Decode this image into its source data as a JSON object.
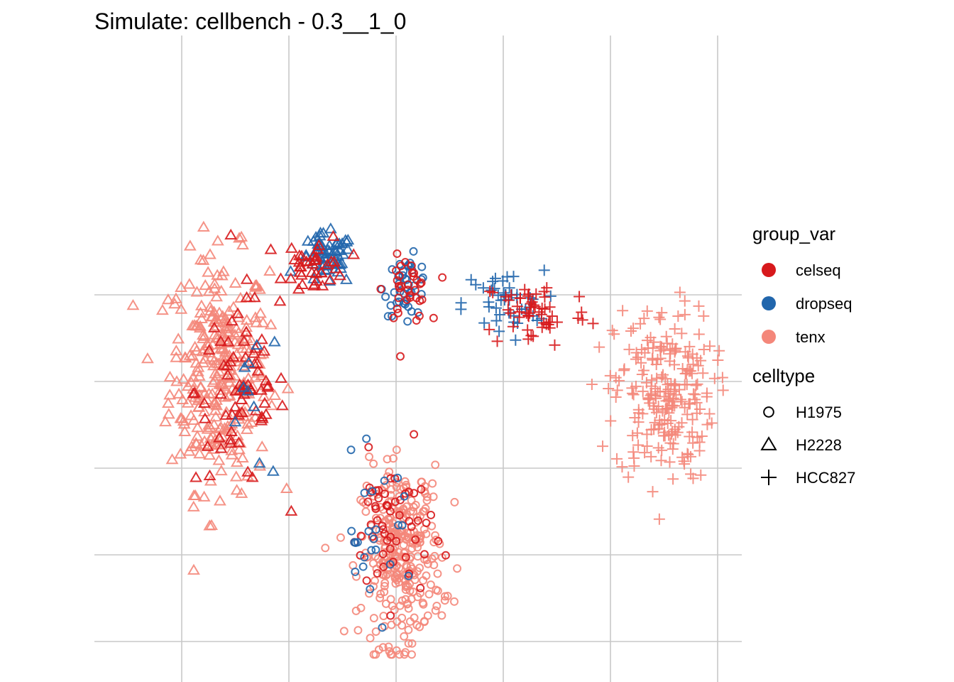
{
  "chart_data": {
    "type": "scatter",
    "title": "Simulate: cellbench - 0.3__1_0",
    "xlabel": "",
    "ylabel": "",
    "grid": true,
    "axis_ticks_labeled": false,
    "xlim": [
      0,
      6
    ],
    "ylim": [
      0,
      5.4
    ],
    "x_gridlines": [
      0.5,
      1.5,
      2.5,
      3.5,
      4.5,
      5.5
    ],
    "y_gridlines": [
      0.5,
      2.5,
      4.5
    ],
    "legend_position": "right",
    "legend": {
      "color": {
        "title": "group_var",
        "entries": [
          {
            "label": "celseq",
            "color": "#D7191C"
          },
          {
            "label": "dropseq",
            "color": "#2166AC"
          },
          {
            "label": "tenx",
            "color": "#F4877A"
          }
        ]
      },
      "shape": {
        "title": "celltype",
        "entries": [
          {
            "label": "H1975",
            "shape": "circle"
          },
          {
            "label": "H2228",
            "shape": "triangle"
          },
          {
            "label": "HCC827",
            "shape": "plus"
          }
        ]
      }
    },
    "clusters": [
      {
        "celltype": "H2228",
        "group_var": "tenx",
        "shape": "triangle",
        "color": "#F4877A",
        "n": 300,
        "center": [
          0.85,
          3.6
        ],
        "spread": [
          0.55,
          1.6
        ]
      },
      {
        "celltype": "H2228",
        "group_var": "celseq",
        "shape": "triangle",
        "color": "#D7191C",
        "n": 70,
        "center": [
          1.05,
          3.4
        ],
        "spread": [
          0.5,
          1.3
        ]
      },
      {
        "celltype": "H2228",
        "group_var": "dropseq",
        "shape": "triangle",
        "color": "#2166AC",
        "n": 10,
        "center": [
          1.2,
          3.3
        ],
        "spread": [
          0.4,
          1.2
        ]
      },
      {
        "celltype": "H2228",
        "group_var": "dropseq",
        "shape": "triangle",
        "color": "#2166AC",
        "n": 60,
        "center": [
          1.85,
          4.9
        ],
        "spread": [
          0.3,
          0.35
        ]
      },
      {
        "celltype": "H2228",
        "group_var": "celseq",
        "shape": "triangle",
        "color": "#D7191C",
        "n": 40,
        "center": [
          1.75,
          4.85
        ],
        "spread": [
          0.35,
          0.4
        ]
      },
      {
        "celltype": "H1975",
        "group_var": "dropseq",
        "shape": "circle",
        "color": "#2166AC",
        "n": 40,
        "center": [
          2.6,
          4.6
        ],
        "spread": [
          0.25,
          0.4
        ]
      },
      {
        "celltype": "H1975",
        "group_var": "celseq",
        "shape": "circle",
        "color": "#D7191C",
        "n": 35,
        "center": [
          2.6,
          4.55
        ],
        "spread": [
          0.25,
          0.45
        ]
      },
      {
        "celltype": "HCC827",
        "group_var": "dropseq",
        "shape": "plus",
        "color": "#2166AC",
        "n": 45,
        "center": [
          3.5,
          4.4
        ],
        "spread": [
          0.45,
          0.45
        ]
      },
      {
        "celltype": "HCC827",
        "group_var": "celseq",
        "shape": "plus",
        "color": "#D7191C",
        "n": 55,
        "center": [
          3.8,
          4.3
        ],
        "spread": [
          0.6,
          0.5
        ]
      },
      {
        "celltype": "HCC827",
        "group_var": "tenx",
        "shape": "plus",
        "color": "#F4877A",
        "n": 230,
        "center": [
          5.0,
          3.35
        ],
        "spread": [
          0.55,
          1.2
        ]
      },
      {
        "celltype": "H1975",
        "group_var": "tenx",
        "shape": "circle",
        "color": "#F4877A",
        "n": 300,
        "center": [
          2.55,
          1.5
        ],
        "spread": [
          0.45,
          1.2
        ]
      },
      {
        "celltype": "H1975",
        "group_var": "celseq",
        "shape": "circle",
        "color": "#D7191C",
        "n": 55,
        "center": [
          2.45,
          1.8
        ],
        "spread": [
          0.45,
          1.0
        ]
      },
      {
        "celltype": "H1975",
        "group_var": "dropseq",
        "shape": "circle",
        "color": "#2166AC",
        "n": 25,
        "center": [
          2.3,
          1.7
        ],
        "spread": [
          0.45,
          1.0
        ]
      }
    ]
  }
}
